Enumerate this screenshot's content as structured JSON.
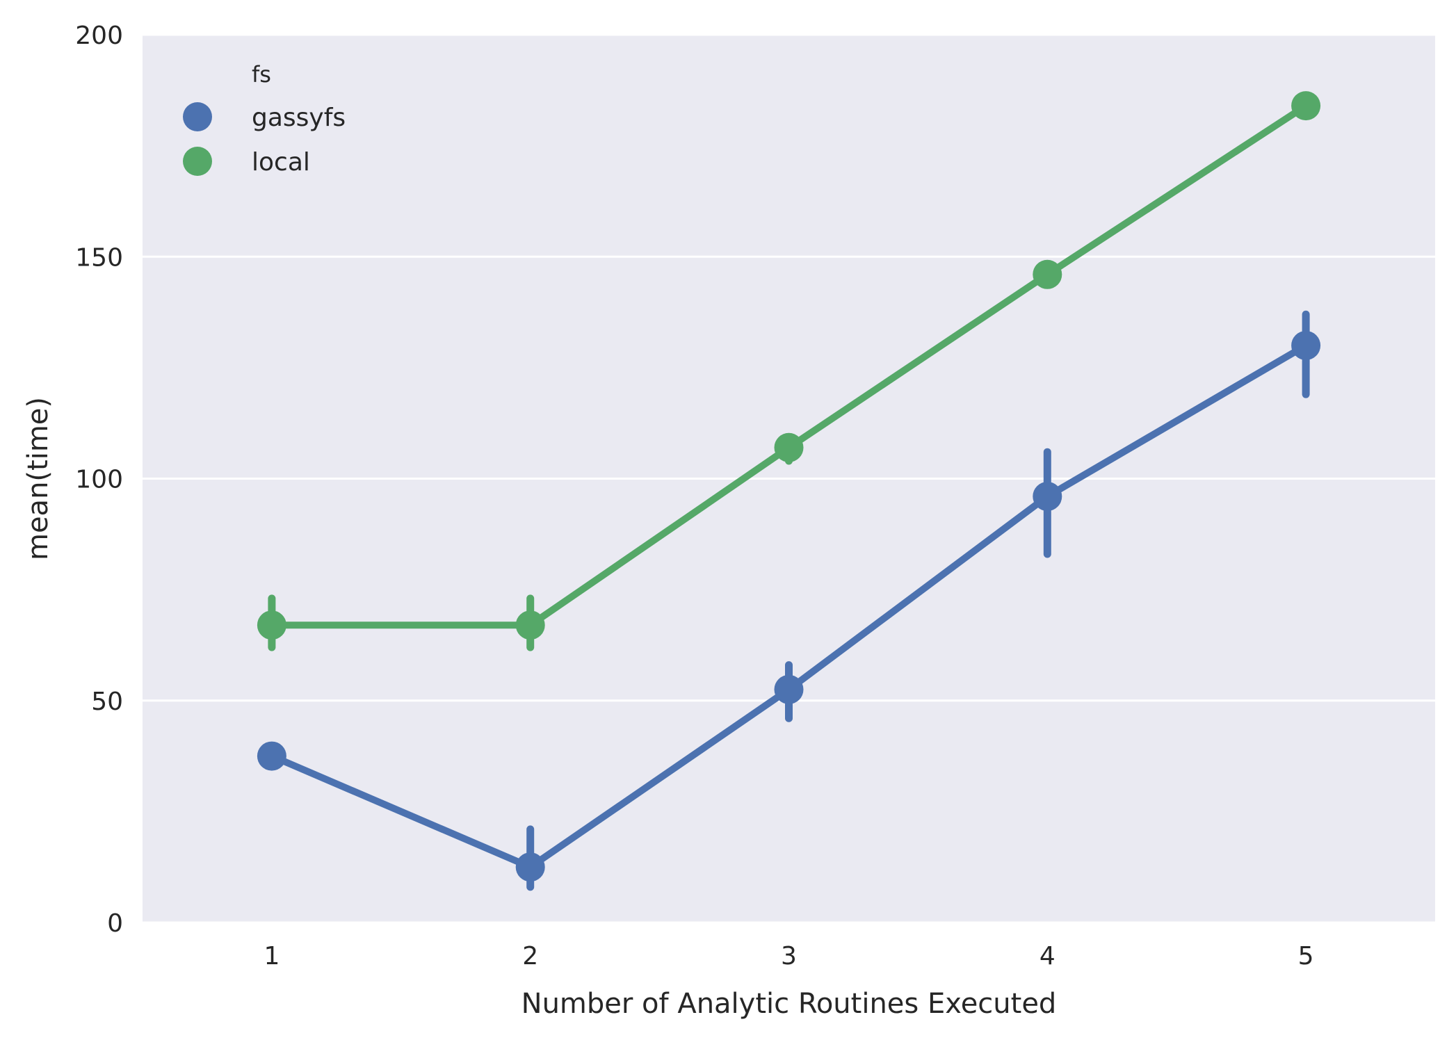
{
  "chart_data": {
    "type": "line",
    "xlabel": "Number of Analytic Routines Executed",
    "ylabel": "mean(time)",
    "categories": [
      "1",
      "2",
      "3",
      "4",
      "5"
    ],
    "ylim": [
      0,
      200
    ],
    "yticks": [
      "0",
      "50",
      "100",
      "150",
      "200"
    ],
    "grid": true,
    "legend": {
      "title": "fs",
      "placement": "top-left"
    },
    "series": [
      {
        "name": "gassyfs",
        "color": "#4c72b0",
        "values": [
          37.5,
          12.5,
          52.5,
          96,
          130
        ],
        "err_low": [
          37.5,
          8,
          46,
          83,
          119
        ],
        "err_high": [
          37.5,
          21,
          58,
          106,
          137
        ]
      },
      {
        "name": "local",
        "color": "#55a868",
        "values": [
          67,
          67,
          107,
          146,
          184
        ],
        "err_low": [
          62,
          62,
          104,
          146,
          184
        ],
        "err_high": [
          73,
          73,
          108,
          146,
          184
        ]
      }
    ],
    "background": "#eaeaf2",
    "gridColor": "#ffffff"
  }
}
